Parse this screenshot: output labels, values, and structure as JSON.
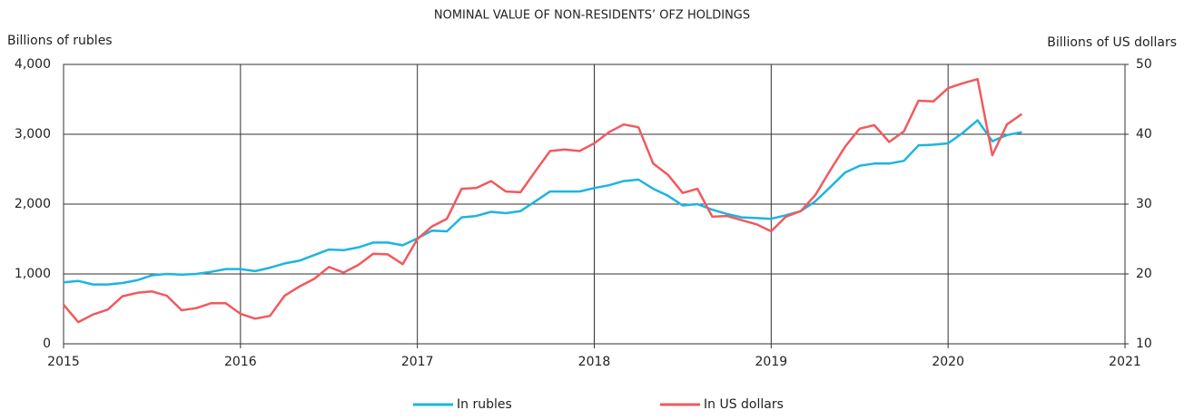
{
  "chart_data": {
    "type": "line",
    "title": "NOMINAL VALUE OF NON-RESIDENTS’ OFZ HOLDINGS",
    "y_label": "Billions of rubles",
    "y2_label": "Billions of US dollars",
    "x": [
      2015,
      2015.083,
      2015.167,
      2015.25,
      2015.333,
      2015.417,
      2015.5,
      2015.583,
      2015.667,
      2015.75,
      2015.833,
      2015.917,
      2016,
      2016.083,
      2016.167,
      2016.25,
      2016.333,
      2016.417,
      2016.5,
      2016.583,
      2016.667,
      2016.75,
      2016.833,
      2016.917,
      2017,
      2017.083,
      2017.167,
      2017.25,
      2017.333,
      2017.417,
      2017.5,
      2017.583,
      2017.667,
      2017.75,
      2017.833,
      2017.917,
      2018,
      2018.083,
      2018.167,
      2018.25,
      2018.333,
      2018.417,
      2018.5,
      2018.583,
      2018.667,
      2018.75,
      2018.833,
      2018.917,
      2019,
      2019.083,
      2019.167,
      2019.25,
      2019.333,
      2019.417,
      2019.5,
      2019.583,
      2019.667,
      2019.75,
      2019.833,
      2019.917,
      2020,
      2020.083,
      2020.167,
      2020.25,
      2020.333,
      2020.417
    ],
    "series": [
      {
        "name": "In rubles",
        "color": "#1cb5e0",
        "values": [
          880,
          900,
          850,
          850,
          870,
          910,
          980,
          1000,
          990,
          1000,
          1030,
          1070,
          1070,
          1040,
          1090,
          1150,
          1190,
          1270,
          1350,
          1340,
          1380,
          1450,
          1450,
          1410,
          1510,
          1620,
          1610,
          1810,
          1830,
          1890,
          1870,
          1900,
          2040,
          2180,
          2180,
          2180,
          2230,
          2270,
          2330,
          2350,
          2220,
          2120,
          1980,
          2000,
          1920,
          1860,
          1810,
          1800,
          1790,
          1840,
          1900,
          2040,
          2240,
          2450,
          2550,
          2580,
          2580,
          2620,
          2840,
          2850,
          2870,
          3020,
          3200,
          2900,
          2990,
          3030
        ]
      },
      {
        "name": "In US dollars",
        "color": "#f05a5f",
        "axis": "y2",
        "values": [
          15.6,
          13.1,
          14.2,
          14.9,
          16.8,
          17.3,
          17.5,
          16.9,
          14.8,
          15.1,
          15.8,
          15.8,
          14.3,
          13.6,
          14.0,
          16.9,
          18.2,
          19.3,
          21.0,
          20.2,
          21.3,
          22.9,
          22.8,
          21.4,
          25.0,
          26.8,
          27.9,
          32.2,
          32.3,
          33.3,
          31.8,
          31.7,
          34.7,
          37.6,
          37.8,
          37.6,
          38.7,
          40.3,
          41.4,
          41.0,
          35.8,
          34.2,
          31.6,
          32.2,
          28.2,
          28.3,
          27.7,
          27.1,
          26.1,
          28.2,
          29.0,
          31.3,
          34.8,
          38.2,
          40.8,
          41.3,
          38.9,
          40.4,
          44.8,
          44.7,
          46.6,
          47.3,
          47.9,
          37.0,
          41.4,
          42.9
        ]
      }
    ],
    "xlim": [
      2015,
      2021
    ],
    "xticks": [
      2015,
      2016,
      2017,
      2018,
      2019,
      2020,
      2021
    ],
    "ylim": [
      0,
      4000
    ],
    "yticks": [
      0,
      {
        "value": 1000,
        "label": "1,000"
      },
      {
        "value": 2000,
        "label": "2,000"
      },
      {
        "value": 3000,
        "label": "3,000"
      },
      {
        "value": 4000,
        "label": "4,000"
      }
    ],
    "y2lim": [
      10,
      50
    ],
    "y2ticks": [
      10,
      20,
      30,
      40,
      50
    ],
    "grid": true,
    "legend": "bottom"
  }
}
